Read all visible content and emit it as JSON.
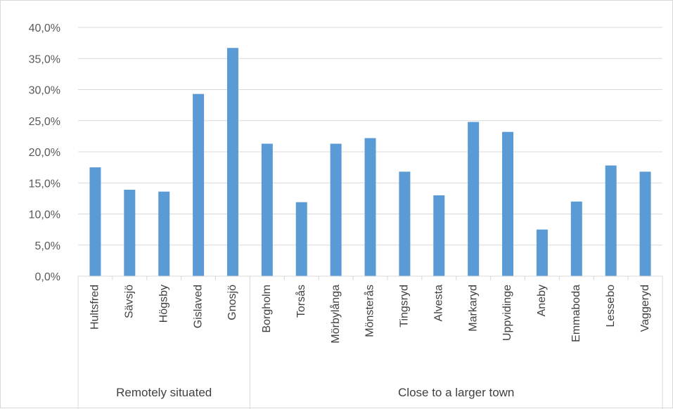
{
  "chart_data": {
    "type": "bar",
    "title": "",
    "xlabel": "",
    "ylabel": "",
    "ylim": [
      0,
      0.4
    ],
    "ytick_values": [
      0,
      0.05,
      0.1,
      0.15,
      0.2,
      0.25,
      0.3,
      0.35,
      0.4
    ],
    "ytick_labels": [
      "0,0%",
      "5,0%",
      "10,0%",
      "15,0%",
      "20,0%",
      "25,0%",
      "30,0%",
      "35,0%",
      "40,0%"
    ],
    "grid": true,
    "legend": "none",
    "bar_color": "#5b9bd5",
    "categories": [
      "Hultsfred",
      "Sävsjö",
      "Högsby",
      "Gislaved",
      "Gnosjö",
      "Borgholm",
      "Torsås",
      "Mörbylånga",
      "Mönsterås",
      "Tingsryd",
      "Alvesta",
      "Markaryd",
      "Uppvidinge",
      "Aneby",
      "Emmaboda",
      "Lessebo",
      "Vaggeryd"
    ],
    "values": [
      0.175,
      0.139,
      0.136,
      0.293,
      0.367,
      0.213,
      0.119,
      0.213,
      0.222,
      0.168,
      0.13,
      0.248,
      0.232,
      0.075,
      0.12,
      0.178,
      0.168
    ],
    "groups": [
      {
        "label": "Remotely situated",
        "count": 5
      },
      {
        "label": "Close to a larger town",
        "count": 12
      }
    ]
  }
}
